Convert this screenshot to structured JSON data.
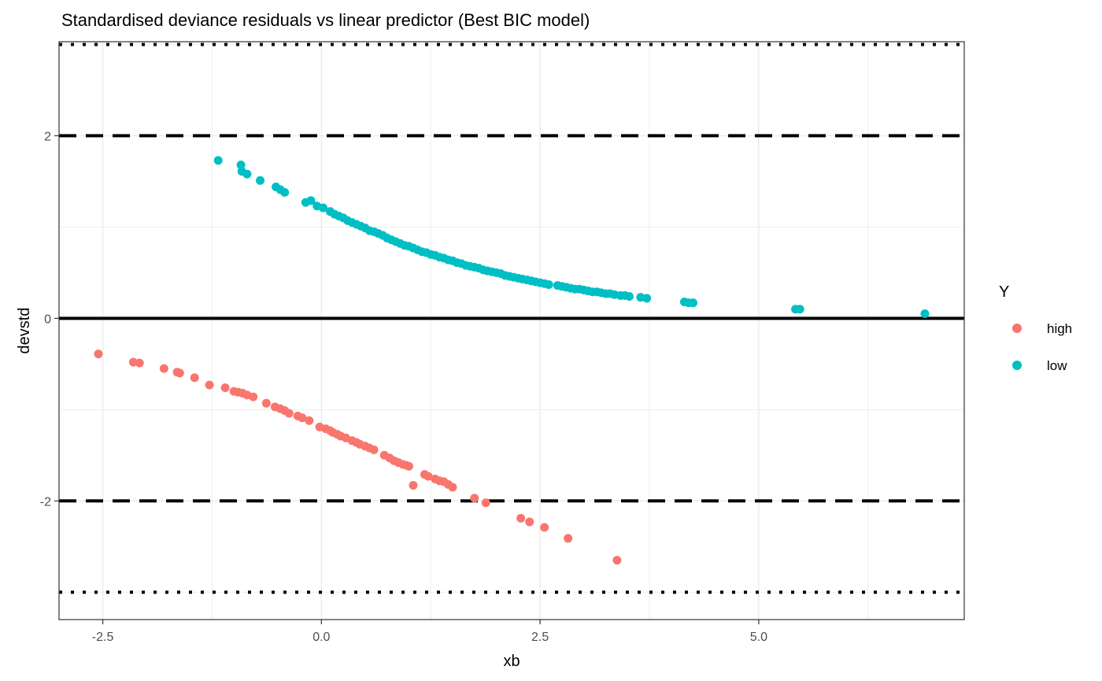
{
  "chart_data": {
    "type": "scatter",
    "title": "Standardised deviance residuals vs linear predictor (Best BIC model)",
    "xlabel": "xb",
    "ylabel": "devstd",
    "xlim": [
      -3.0,
      7.35
    ],
    "ylim": [
      -3.3,
      3.03
    ],
    "x_ticks": [
      -2.5,
      0.0,
      2.5,
      5.0
    ],
    "x_tick_labels": [
      "-2.5",
      "0.0",
      "2.5",
      "5.0"
    ],
    "y_ticks": [
      -2,
      0,
      2
    ],
    "y_tick_labels": [
      "-2",
      "0",
      "2"
    ],
    "grid": true,
    "legend": {
      "title": "Y",
      "position": "right",
      "entries": [
        {
          "label": "high",
          "color": "#F8766D"
        },
        {
          "label": "low",
          "color": "#00BFC4"
        }
      ]
    },
    "reference_lines": [
      {
        "y": 0,
        "style": "solid"
      },
      {
        "y": 2,
        "style": "dashed"
      },
      {
        "y": -2,
        "style": "dashed"
      },
      {
        "y": 3,
        "style": "dotted"
      },
      {
        "y": -3,
        "style": "dotted"
      }
    ],
    "series": [
      {
        "name": "high",
        "color": "#F8766D",
        "x": [
          -2.55,
          -2.15,
          -2.08,
          -1.8,
          -1.65,
          -1.62,
          -1.45,
          -1.28,
          -1.1,
          -1.0,
          -0.95,
          -0.9,
          -0.85,
          -0.78,
          -0.63,
          -0.53,
          -0.47,
          -0.42,
          -0.37,
          -0.27,
          -0.22,
          -0.14,
          -0.02,
          0.05,
          0.1,
          0.13,
          0.18,
          0.22,
          0.28,
          0.35,
          0.4,
          0.44,
          0.5,
          0.55,
          0.6,
          0.72,
          0.78,
          0.83,
          0.88,
          0.93,
          0.97,
          1.0,
          1.05,
          1.18,
          1.22,
          1.3,
          1.35,
          1.4,
          1.45,
          1.5,
          1.75,
          1.88,
          2.28,
          2.38,
          2.55,
          2.82,
          3.38
        ],
        "y": [
          -0.39,
          -0.48,
          -0.49,
          -0.55,
          -0.59,
          -0.6,
          -0.65,
          -0.73,
          -0.76,
          -0.8,
          -0.81,
          -0.82,
          -0.84,
          -0.86,
          -0.93,
          -0.97,
          -0.99,
          -1.01,
          -1.04,
          -1.07,
          -1.09,
          -1.12,
          -1.19,
          -1.21,
          -1.23,
          -1.25,
          -1.27,
          -1.29,
          -1.31,
          -1.34,
          -1.36,
          -1.38,
          -1.4,
          -1.42,
          -1.44,
          -1.5,
          -1.53,
          -1.56,
          -1.58,
          -1.6,
          -1.61,
          -1.62,
          -1.83,
          -1.71,
          -1.73,
          -1.76,
          -1.78,
          -1.79,
          -1.82,
          -1.85,
          -1.97,
          -2.02,
          -2.19,
          -2.23,
          -2.29,
          -2.41,
          -2.65
        ]
      },
      {
        "name": "low",
        "color": "#00BFC4",
        "x": [
          -1.18,
          -0.92,
          -0.91,
          -0.85,
          -0.7,
          -0.52,
          -0.47,
          -0.42,
          -0.18,
          -0.12,
          -0.05,
          0.02,
          0.1,
          0.15,
          0.2,
          0.25,
          0.3,
          0.35,
          0.4,
          0.45,
          0.5,
          0.55,
          0.6,
          0.65,
          0.7,
          0.75,
          0.8,
          0.85,
          0.9,
          0.95,
          1.0,
          1.05,
          1.1,
          1.15,
          1.2,
          1.25,
          1.3,
          1.35,
          1.4,
          1.45,
          1.5,
          1.55,
          1.6,
          1.65,
          1.7,
          1.75,
          1.8,
          1.85,
          1.9,
          1.95,
          2.0,
          2.05,
          2.1,
          2.15,
          2.2,
          2.25,
          2.3,
          2.35,
          2.4,
          2.45,
          2.5,
          2.55,
          2.6,
          2.7,
          2.75,
          2.8,
          2.85,
          2.9,
          2.95,
          3.0,
          3.05,
          3.1,
          3.15,
          3.2,
          3.25,
          3.3,
          3.35,
          3.42,
          3.47,
          3.52,
          3.65,
          3.72,
          4.15,
          4.2,
          4.25,
          5.42,
          5.47,
          6.9
        ],
        "y": [
          1.73,
          1.68,
          1.61,
          1.58,
          1.51,
          1.44,
          1.41,
          1.38,
          1.27,
          1.29,
          1.23,
          1.21,
          1.17,
          1.14,
          1.12,
          1.1,
          1.07,
          1.05,
          1.03,
          1.01,
          0.99,
          0.96,
          0.95,
          0.93,
          0.91,
          0.88,
          0.86,
          0.84,
          0.82,
          0.8,
          0.79,
          0.77,
          0.75,
          0.73,
          0.72,
          0.7,
          0.69,
          0.67,
          0.66,
          0.64,
          0.63,
          0.61,
          0.6,
          0.58,
          0.57,
          0.56,
          0.55,
          0.53,
          0.52,
          0.51,
          0.5,
          0.49,
          0.47,
          0.46,
          0.45,
          0.44,
          0.43,
          0.42,
          0.41,
          0.4,
          0.39,
          0.38,
          0.37,
          0.36,
          0.35,
          0.34,
          0.33,
          0.32,
          0.32,
          0.31,
          0.3,
          0.29,
          0.29,
          0.28,
          0.27,
          0.27,
          0.26,
          0.25,
          0.25,
          0.24,
          0.23,
          0.22,
          0.18,
          0.17,
          0.17,
          0.1,
          0.1,
          0.05
        ]
      }
    ]
  }
}
